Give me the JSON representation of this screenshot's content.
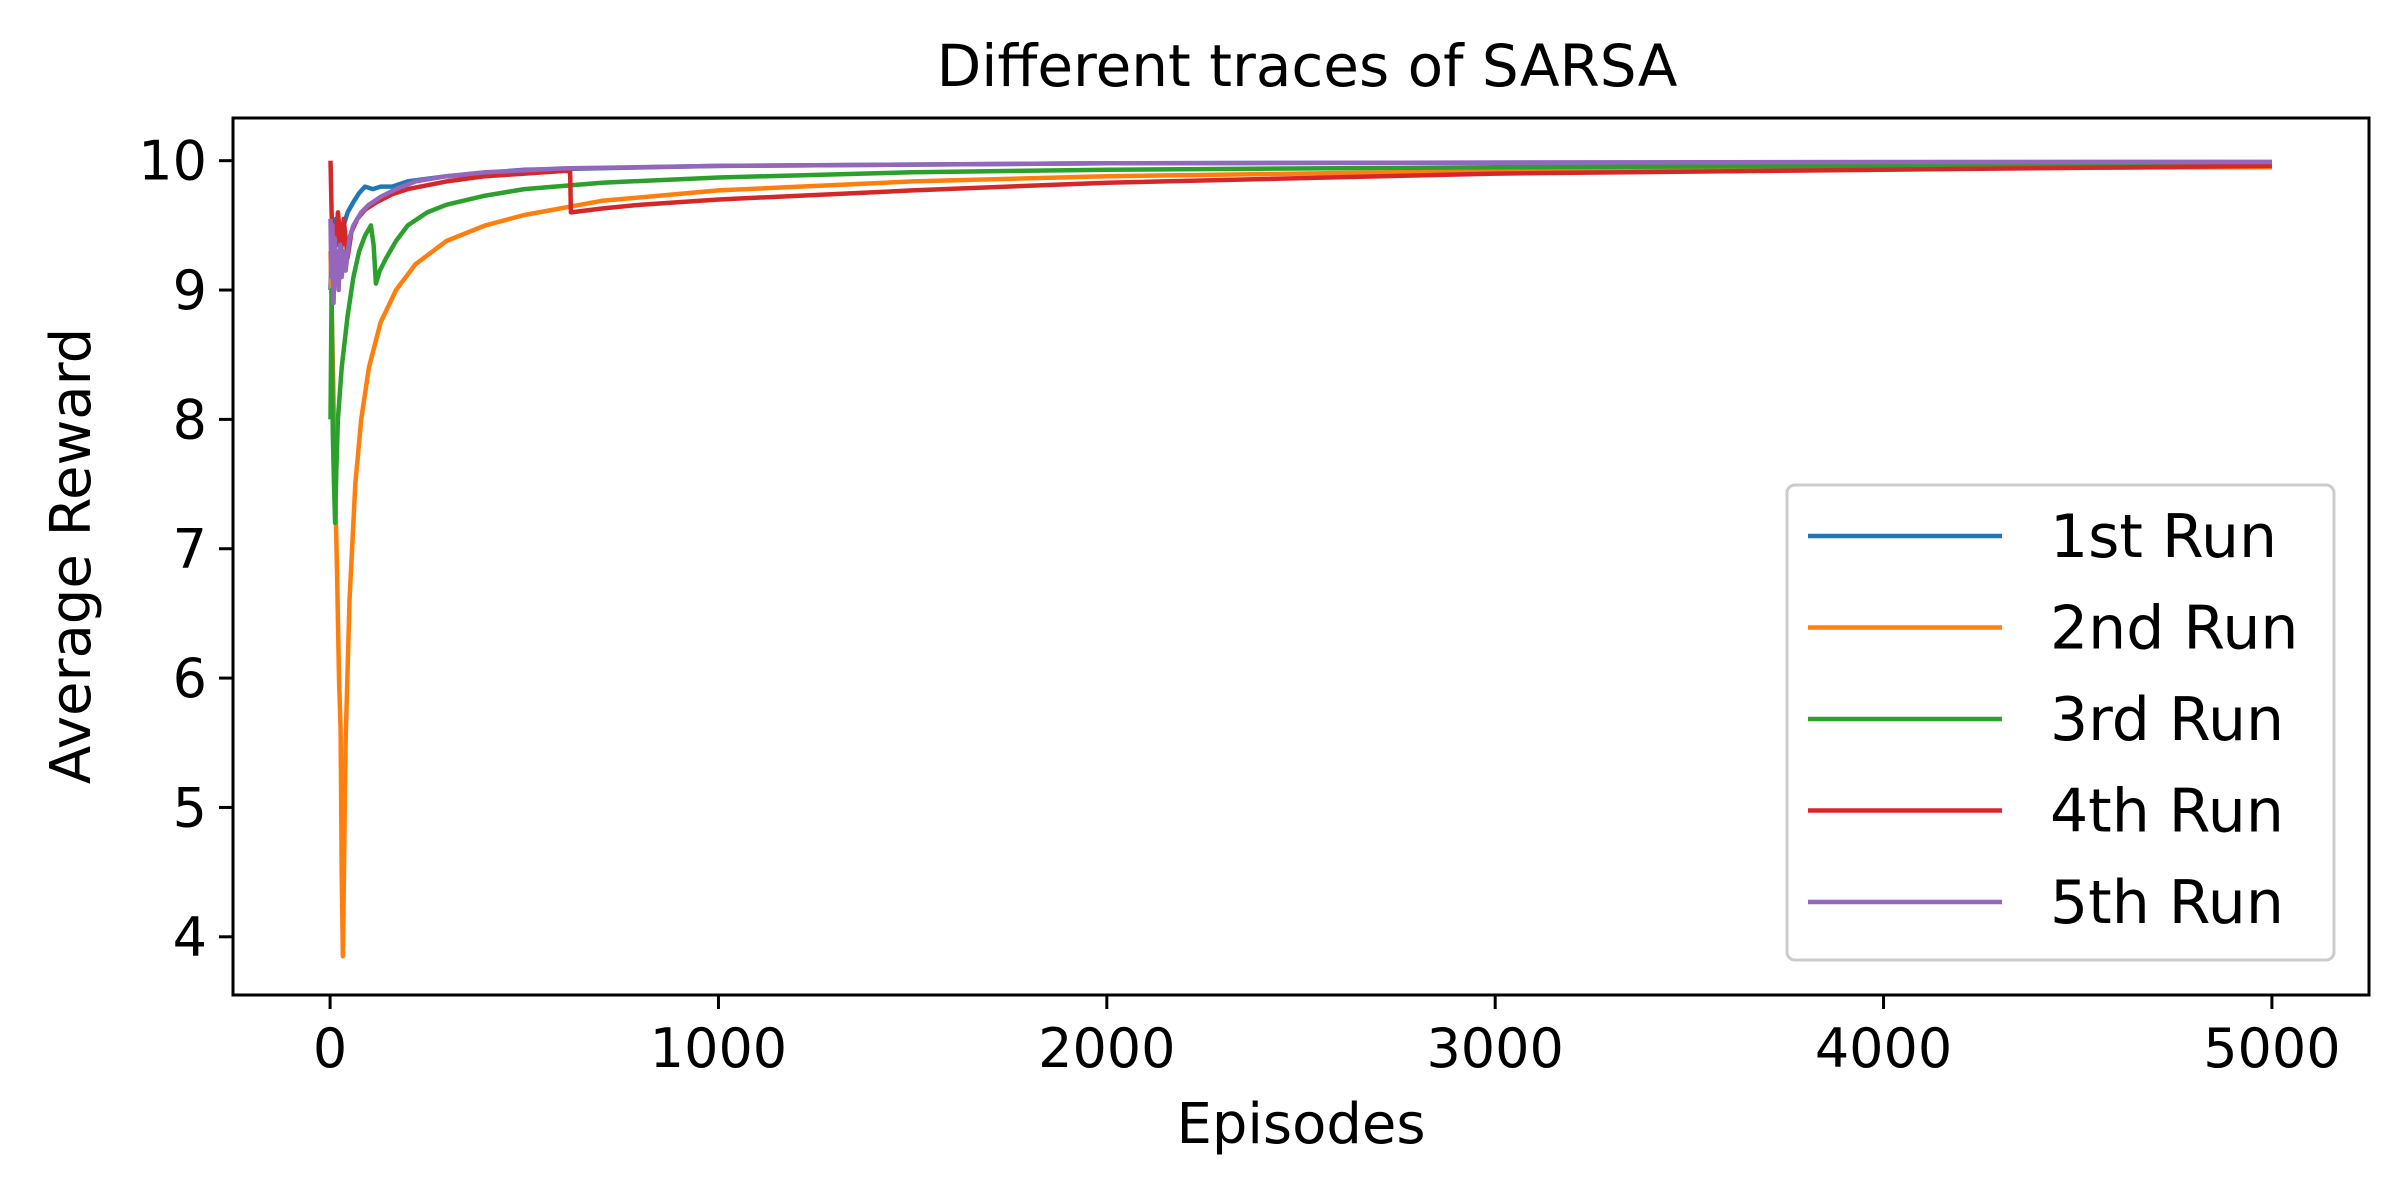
{
  "chart_data": {
    "type": "line",
    "title": "Different traces of SARSA",
    "xlabel": "Episodes",
    "ylabel": "Average Reward",
    "xlim": [
      -250,
      5250
    ],
    "ylim": [
      3.55,
      10.33
    ],
    "x_ticks": [
      0,
      1000,
      2000,
      3000,
      4000,
      5000
    ],
    "x_tick_labels": [
      "0",
      "1000",
      "2000",
      "3000",
      "4000",
      "5000"
    ],
    "y_ticks": [
      4,
      5,
      6,
      7,
      8,
      9,
      10
    ],
    "y_tick_labels": [
      "4",
      "5",
      "6",
      "7",
      "8",
      "9",
      "10"
    ],
    "grid": false,
    "legend_position": "lower-right",
    "series": [
      {
        "name": "1st Run",
        "color": "#1f77b4",
        "points": [
          [
            1,
            9.0
          ],
          [
            5,
            9.45
          ],
          [
            10,
            9.3
          ],
          [
            15,
            9.55
          ],
          [
            20,
            9.4
          ],
          [
            28,
            9.3
          ],
          [
            35,
            9.5
          ],
          [
            45,
            9.6
          ],
          [
            60,
            9.68
          ],
          [
            75,
            9.75
          ],
          [
            90,
            9.8
          ],
          [
            110,
            9.78
          ],
          [
            130,
            9.8
          ],
          [
            160,
            9.8
          ],
          [
            200,
            9.84
          ],
          [
            300,
            9.88
          ],
          [
            500,
            9.93
          ],
          [
            1000,
            9.96
          ],
          [
            2000,
            9.98
          ],
          [
            3000,
            9.985
          ],
          [
            4000,
            9.988
          ],
          [
            5000,
            9.99
          ]
        ]
      },
      {
        "name": "2nd Run",
        "color": "#ff7f0e",
        "points": [
          [
            1,
            9.3
          ],
          [
            4,
            8.9
          ],
          [
            8,
            8.3
          ],
          [
            12,
            7.6
          ],
          [
            18,
            6.8
          ],
          [
            23,
            6.0
          ],
          [
            27,
            5.6
          ],
          [
            30,
            4.5
          ],
          [
            33,
            3.85
          ],
          [
            36,
            4.6
          ],
          [
            40,
            5.5
          ],
          [
            50,
            6.6
          ],
          [
            65,
            7.5
          ],
          [
            80,
            8.0
          ],
          [
            100,
            8.4
          ],
          [
            130,
            8.75
          ],
          [
            170,
            9.0
          ],
          [
            220,
            9.2
          ],
          [
            300,
            9.38
          ],
          [
            400,
            9.5
          ],
          [
            500,
            9.58
          ],
          [
            700,
            9.69
          ],
          [
            1000,
            9.77
          ],
          [
            1500,
            9.84
          ],
          [
            2000,
            9.88
          ],
          [
            3000,
            9.92
          ],
          [
            4000,
            9.94
          ],
          [
            5000,
            9.95
          ]
        ]
      },
      {
        "name": "3rd Run",
        "color": "#2ca02c",
        "points": [
          [
            1,
            8.0
          ],
          [
            4,
            9.0
          ],
          [
            7,
            7.9
          ],
          [
            10,
            7.5
          ],
          [
            13,
            7.2
          ],
          [
            16,
            7.6
          ],
          [
            20,
            8.0
          ],
          [
            30,
            8.4
          ],
          [
            45,
            8.8
          ],
          [
            60,
            9.1
          ],
          [
            75,
            9.3
          ],
          [
            90,
            9.42
          ],
          [
            105,
            9.5
          ],
          [
            112,
            9.35
          ],
          [
            118,
            9.05
          ],
          [
            128,
            9.15
          ],
          [
            145,
            9.25
          ],
          [
            170,
            9.38
          ],
          [
            200,
            9.5
          ],
          [
            250,
            9.6
          ],
          [
            300,
            9.66
          ],
          [
            400,
            9.73
          ],
          [
            500,
            9.78
          ],
          [
            700,
            9.83
          ],
          [
            1000,
            9.87
          ],
          [
            1500,
            9.91
          ],
          [
            2000,
            9.93
          ],
          [
            3000,
            9.95
          ],
          [
            4000,
            9.96
          ],
          [
            5000,
            9.97
          ]
        ]
      },
      {
        "name": "4th Run",
        "color": "#d62728",
        "points": [
          [
            1,
            10.0
          ],
          [
            4,
            9.6
          ],
          [
            8,
            9.3
          ],
          [
            12,
            9.5
          ],
          [
            16,
            9.35
          ],
          [
            20,
            9.6
          ],
          [
            25,
            9.45
          ],
          [
            30,
            9.35
          ],
          [
            35,
            9.55
          ],
          [
            40,
            9.4
          ],
          [
            45,
            9.25
          ],
          [
            55,
            9.45
          ],
          [
            70,
            9.55
          ],
          [
            90,
            9.62
          ],
          [
            120,
            9.68
          ],
          [
            160,
            9.74
          ],
          [
            200,
            9.78
          ],
          [
            300,
            9.84
          ],
          [
            400,
            9.88
          ],
          [
            500,
            9.9
          ],
          [
            600,
            9.92
          ],
          [
            618,
            9.92
          ],
          [
            620,
            9.6
          ],
          [
            700,
            9.63
          ],
          [
            800,
            9.66
          ],
          [
            1000,
            9.7
          ],
          [
            1500,
            9.77
          ],
          [
            2000,
            9.83
          ],
          [
            3000,
            9.9
          ],
          [
            4000,
            9.93
          ],
          [
            5000,
            9.96
          ]
        ]
      },
      {
        "name": "5th Run",
        "color": "#9467bd",
        "points": [
          [
            1,
            9.55
          ],
          [
            3,
            9.1
          ],
          [
            6,
            9.5
          ],
          [
            9,
            8.9
          ],
          [
            12,
            9.4
          ],
          [
            15,
            9.05
          ],
          [
            18,
            9.3
          ],
          [
            22,
            9.0
          ],
          [
            26,
            9.35
          ],
          [
            30,
            9.1
          ],
          [
            35,
            9.3
          ],
          [
            40,
            9.15
          ],
          [
            50,
            9.4
          ],
          [
            60,
            9.5
          ],
          [
            80,
            9.6
          ],
          [
            100,
            9.66
          ],
          [
            130,
            9.72
          ],
          [
            170,
            9.78
          ],
          [
            220,
            9.84
          ],
          [
            300,
            9.88
          ],
          [
            400,
            9.91
          ],
          [
            600,
            9.94
          ],
          [
            1000,
            9.96
          ],
          [
            2000,
            9.98
          ],
          [
            3000,
            9.985
          ],
          [
            4000,
            9.99
          ],
          [
            5000,
            9.99
          ]
        ]
      }
    ]
  }
}
